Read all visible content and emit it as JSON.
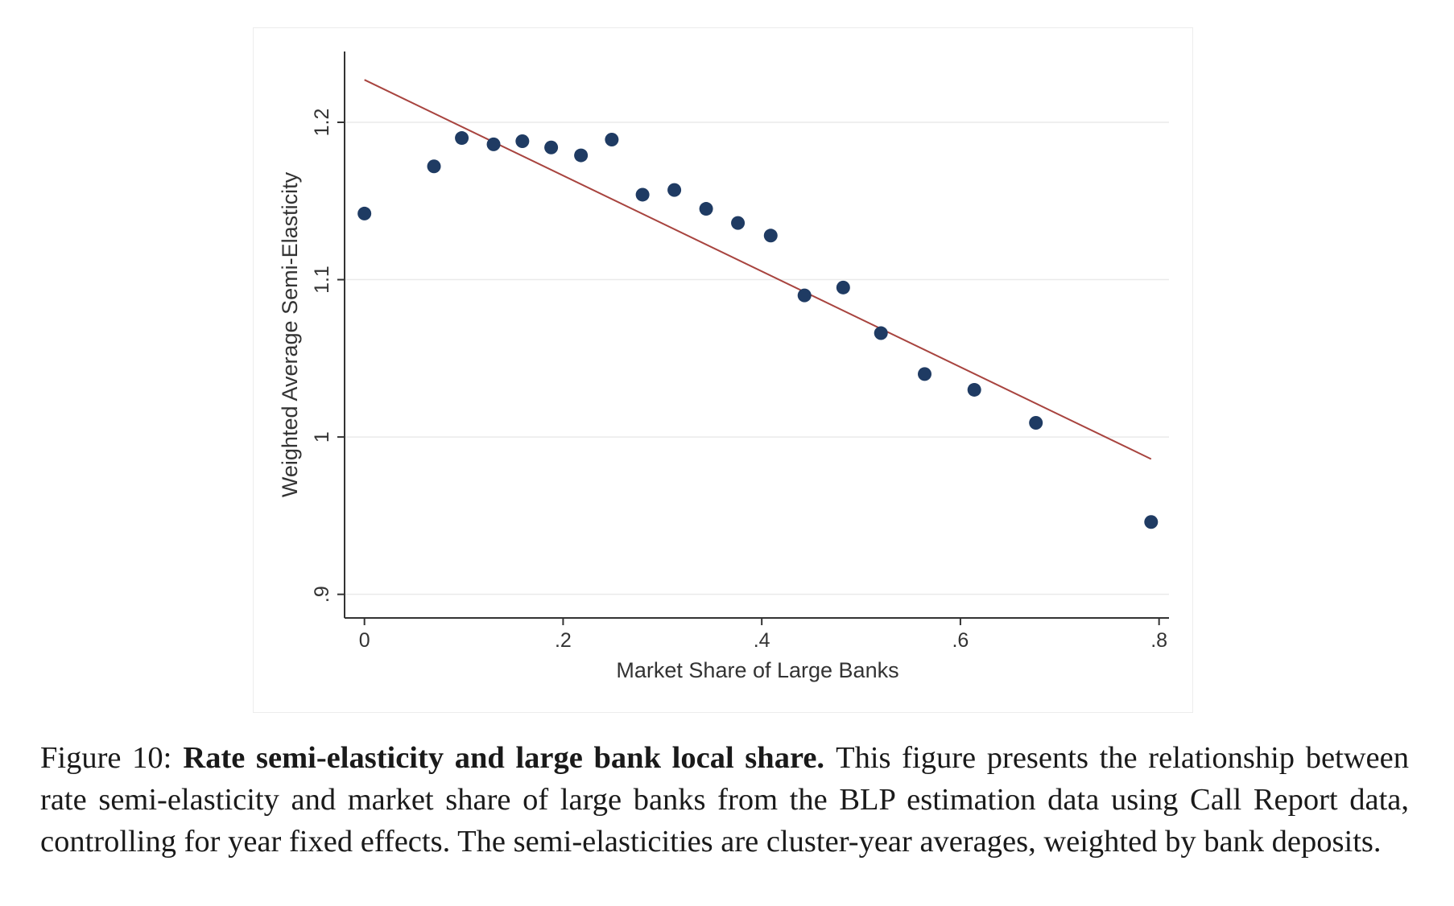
{
  "chart_data": {
    "type": "scatter",
    "title": "",
    "xlabel": "Market Share of Large Banks",
    "ylabel": "Weighted Average Semi-Elasticity",
    "xlim": [
      -0.02,
      0.81
    ],
    "ylim": [
      0.885,
      1.245
    ],
    "x_ticks": [
      0,
      0.2,
      0.4,
      0.6,
      0.8
    ],
    "x_tick_labels": [
      "0",
      ".2",
      ".4",
      ".6",
      ".8"
    ],
    "y_ticks": [
      0.9,
      1.0,
      1.1,
      1.2
    ],
    "y_tick_labels": [
      ".9",
      "1",
      "1.1",
      "1.2"
    ],
    "grid": "horizontal",
    "legend": "none",
    "colors": {
      "points": "#1f3b63",
      "fit_line": "#a8443f",
      "grid": "#eaeaea",
      "axis": "#333333"
    },
    "series": [
      {
        "type": "scatter",
        "x": [
          0.0,
          0.07,
          0.098,
          0.13,
          0.159,
          0.188,
          0.218,
          0.249,
          0.28,
          0.312,
          0.344,
          0.376,
          0.409,
          0.443,
          0.482,
          0.52,
          0.564,
          0.614,
          0.676,
          0.792
        ],
        "y": [
          1.142,
          1.172,
          1.19,
          1.186,
          1.188,
          1.184,
          1.179,
          1.189,
          1.154,
          1.157,
          1.145,
          1.136,
          1.128,
          1.09,
          1.095,
          1.066,
          1.04,
          1.03,
          1.009,
          0.946
        ]
      },
      {
        "type": "line",
        "x": [
          0.0,
          0.792
        ],
        "y": [
          1.227,
          0.986
        ]
      }
    ]
  },
  "caption": {
    "label": "Figure 10:",
    "title": "Rate semi-elasticity and large bank local share.",
    "body": "This figure presents the relationship between rate semi-elasticity and market share of large banks from the BLP estimation data using Call Report data, controlling for year fixed effects. The semi-elasticities are cluster-year averages, weighted by bank deposits."
  }
}
